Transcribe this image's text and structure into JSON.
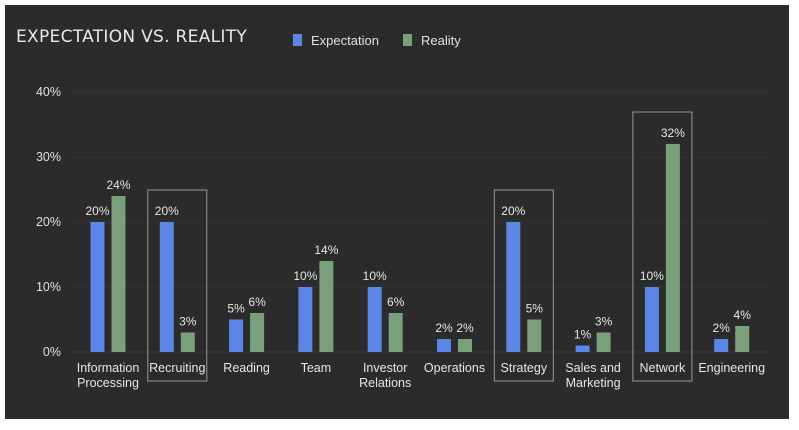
{
  "chart_data": {
    "type": "bar",
    "title": "EXPECTATION VS. REALITY",
    "legend_position": "top",
    "series": [
      {
        "name": "Expectation",
        "color": "#5b86e6",
        "values": [
          20,
          20,
          5,
          10,
          10,
          2,
          20,
          1,
          10,
          2
        ]
      },
      {
        "name": "Reality",
        "color": "#7aa07b",
        "values": [
          24,
          3,
          6,
          14,
          6,
          2,
          5,
          3,
          32,
          4
        ]
      }
    ],
    "categories": [
      [
        "Information",
        "Processing"
      ],
      [
        "Recruiting"
      ],
      [
        "Reading"
      ],
      [
        "Team"
      ],
      [
        "Investor",
        "Relations"
      ],
      [
        "Operations"
      ],
      [
        "Strategy"
      ],
      [
        "Sales and",
        "Marketing"
      ],
      [
        "Network"
      ],
      [
        "Engineering"
      ]
    ],
    "highlighted_categories": [
      "Recruiting",
      "Strategy",
      "Network"
    ],
    "yticks": [
      "0%",
      "10%",
      "20%",
      "30%",
      "40%"
    ],
    "ylim": [
      0,
      40
    ],
    "value_suffix": "%",
    "grid": true
  }
}
